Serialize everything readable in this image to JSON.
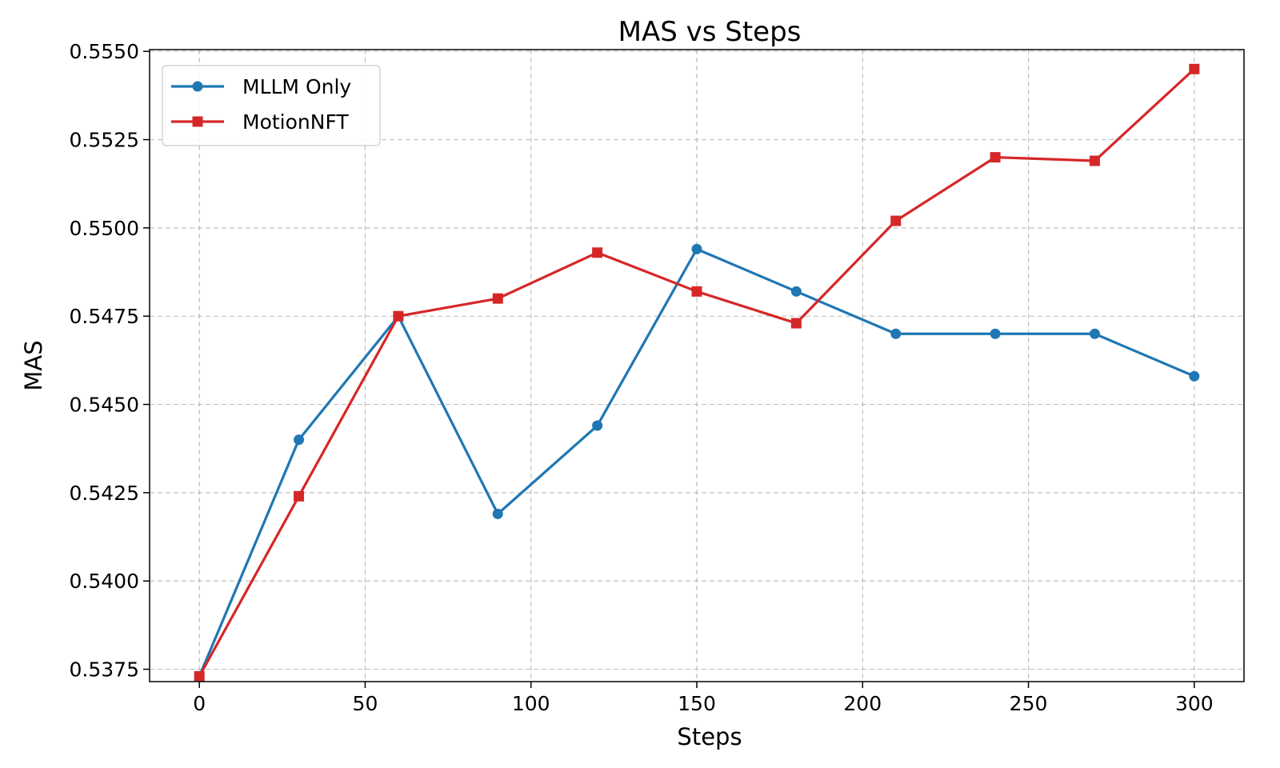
{
  "chart_data": {
    "type": "line",
    "title": "MAS vs Steps",
    "xlabel": "Steps",
    "ylabel": "MAS",
    "xlim": [
      -15,
      315
    ],
    "ylim": [
      0.53715,
      0.55505
    ],
    "xticks": [
      0,
      50,
      100,
      150,
      200,
      250,
      300
    ],
    "xtick_labels": [
      "0",
      "50",
      "100",
      "150",
      "200",
      "250",
      "300"
    ],
    "yticks": [
      0.5375,
      0.54,
      0.5425,
      0.545,
      0.5475,
      0.55,
      0.5525,
      0.555
    ],
    "ytick_labels": [
      "0.5375",
      "0.5400",
      "0.5425",
      "0.5450",
      "0.5475",
      "0.5500",
      "0.5525",
      "0.5550"
    ],
    "grid": true,
    "legend_position": "top-left",
    "x": [
      0,
      30,
      60,
      90,
      120,
      150,
      180,
      210,
      240,
      270,
      300
    ],
    "series": [
      {
        "name": "MLLM Only",
        "color": "#1f77b4",
        "marker": "circle",
        "values": [
          0.5373,
          0.544,
          0.5475,
          0.5419,
          0.5444,
          0.5494,
          0.5482,
          0.547,
          0.547,
          0.547,
          0.5458
        ]
      },
      {
        "name": "MotionNFT",
        "color": "#d62728",
        "marker": "square",
        "values": [
          0.5373,
          0.5424,
          0.5475,
          0.548,
          0.5493,
          0.5482,
          0.5473,
          0.5502,
          0.552,
          0.5519,
          0.5545
        ]
      }
    ]
  }
}
